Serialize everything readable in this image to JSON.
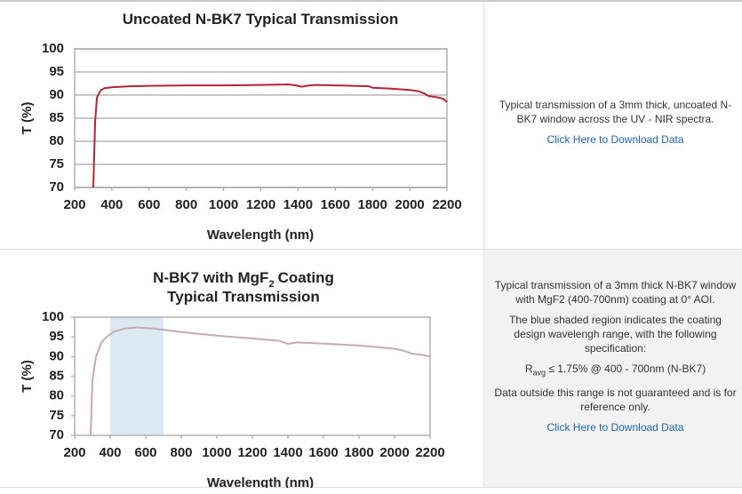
{
  "rows": [
    {
      "chart": {
        "type": "line",
        "title": "Uncoated N-BK7 Typical Transmission",
        "xlabel": "Wavelength (nm)",
        "ylabel": "T (%)",
        "xlim": [
          200,
          2200
        ],
        "xticks": [
          200,
          400,
          600,
          800,
          1000,
          1200,
          1400,
          1600,
          1800,
          2000,
          2200
        ],
        "ylim": [
          70,
          100
        ],
        "yticks": [
          70,
          75,
          80,
          85,
          90,
          95,
          100
        ],
        "grid": true,
        "series": [
          {
            "name": "Uncoated N-BK7",
            "color": "#b3262e",
            "x": [
              300,
              310,
              320,
              340,
              360,
              400,
              500,
              600,
              800,
              1000,
              1200,
              1350,
              1390,
              1420,
              1460,
              1500,
              1700,
              1780,
              1800,
              1900,
              2000,
              2050,
              2080,
              2100,
              2150,
              2180,
              2200
            ],
            "values": [
              70,
              84,
              89.5,
              91,
              91.5,
              91.7,
              91.9,
              92,
              92.1,
              92.1,
              92.2,
              92.3,
              92.1,
              91.8,
              92.1,
              92.2,
              92,
              91.9,
              91.6,
              91.4,
              91.1,
              90.8,
              90.3,
              89.8,
              89.5,
              89.2,
              88.5
            ]
          }
        ]
      },
      "description": [
        "Typical transmission of a 3mm thick, uncoated N-BK7 window across the UV - NIR spectra."
      ],
      "link": "Click Here to Download Data"
    },
    {
      "chart": {
        "type": "line",
        "title": "N-BK7 with MgF",
        "title_subscript": "2",
        "title_suffix": "Coating",
        "title_line2": "Typical Transmission",
        "xlabel": "Wavelength (nm)",
        "ylabel": "T (%)",
        "xlim": [
          200,
          2200
        ],
        "xticks": [
          200,
          400,
          600,
          800,
          1000,
          1200,
          1400,
          1600,
          1800,
          2000,
          2200
        ],
        "ylim": [
          70,
          100
        ],
        "yticks": [
          70,
          75,
          80,
          85,
          90,
          95,
          100
        ],
        "grid": false,
        "shade": [
          400,
          700
        ],
        "shade_color": "#dce9f5",
        "series": [
          {
            "name": "N-BK7 with MgF2",
            "color": "#c9a9b2",
            "x": [
              290,
              300,
              320,
              350,
              380,
              420,
              480,
              550,
              650,
              800,
              1000,
              1200,
              1350,
              1400,
              1450,
              1600,
              1800,
              2000,
              2050,
              2100,
              2150,
              2200
            ],
            "values": [
              70,
              84,
              90,
              93.5,
              95,
              96.3,
              97.1,
              97.4,
              97.1,
              96.2,
              95.3,
              94.6,
              94,
              93.2,
              93.6,
              93.3,
              92.8,
              92,
              91.5,
              90.7,
              90.5,
              90
            ]
          }
        ]
      },
      "description": [
        "Typical transmission of a 3mm thick N-BK7 window with MgF2 (400-700nm) coating at 0° AOI.",
        "The blue shaded region indicates the coating design wavelengh range, with the following specification:"
      ],
      "spec": {
        "symbol": "R",
        "subscript": "avg",
        "text": "≤ 1.75% @ 400 - 700nm (N-BK7)"
      },
      "note": "Data outside this range is not guaranteed and is for reference only.",
      "link": "Click Here to Download Data"
    }
  ]
}
